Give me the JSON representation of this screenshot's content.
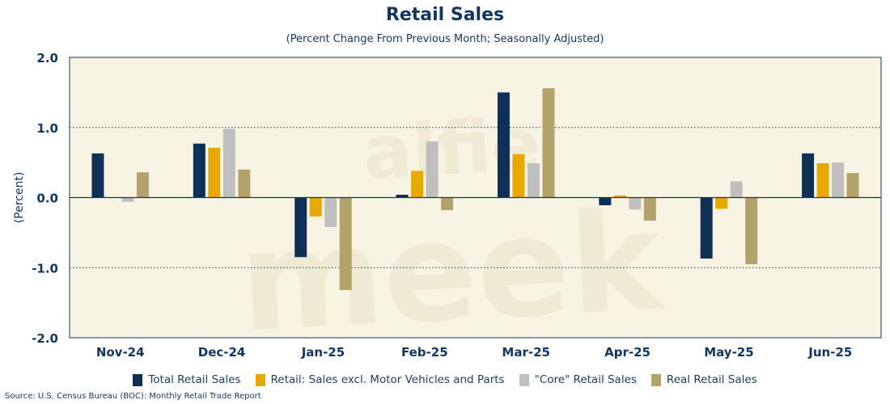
{
  "chart_data": {
    "type": "bar",
    "title": "Retail Sales",
    "subtitle": "(Percent Change From Previous Month; Seasonally Adjusted)",
    "ylabel": "(Percent)",
    "xlabel": "",
    "ylim": [
      -2.0,
      2.0
    ],
    "yticks": [
      "2.0",
      "1.0",
      "0.0",
      "-1.0",
      "-2.0"
    ],
    "ytick_values": [
      2.0,
      1.0,
      0.0,
      -1.0,
      -2.0
    ],
    "gridlines": "dotted",
    "categories": [
      "Nov-24",
      "Dec-24",
      "Jan-25",
      "Feb-25",
      "Mar-25",
      "Apr-25",
      "May-25",
      "Jun-25"
    ],
    "series": [
      {
        "name": "Total Retail Sales",
        "color": "#0e2f56",
        "values": [
          0.63,
          0.77,
          -0.85,
          0.04,
          1.5,
          -0.11,
          -0.87,
          0.63
        ]
      },
      {
        "name": "Retail: Sales excl. Motor Vehicles and Parts",
        "color": "#e9a800",
        "values": [
          0.0,
          0.71,
          -0.27,
          0.38,
          0.62,
          0.03,
          -0.16,
          0.49
        ]
      },
      {
        "name": "\"Core\" Retail Sales",
        "color": "#bfbfbf",
        "values": [
          -0.06,
          0.98,
          -0.42,
          0.8,
          0.49,
          -0.17,
          0.23,
          0.5
        ]
      },
      {
        "name": "Real Retail Sales",
        "color": "#b3a36b",
        "values": [
          0.36,
          0.4,
          -1.32,
          -0.18,
          1.56,
          -0.33,
          -0.95,
          0.35
        ]
      }
    ],
    "legend_position": "bottom-center"
  },
  "source": "Source: U.S. Census Bureau (BOC): Monthly Retail Trade Report",
  "watermark": "alfie meek",
  "colors": {
    "plot_background": "#f8f4e3",
    "title": "#14365d",
    "axis": "#14365d"
  }
}
